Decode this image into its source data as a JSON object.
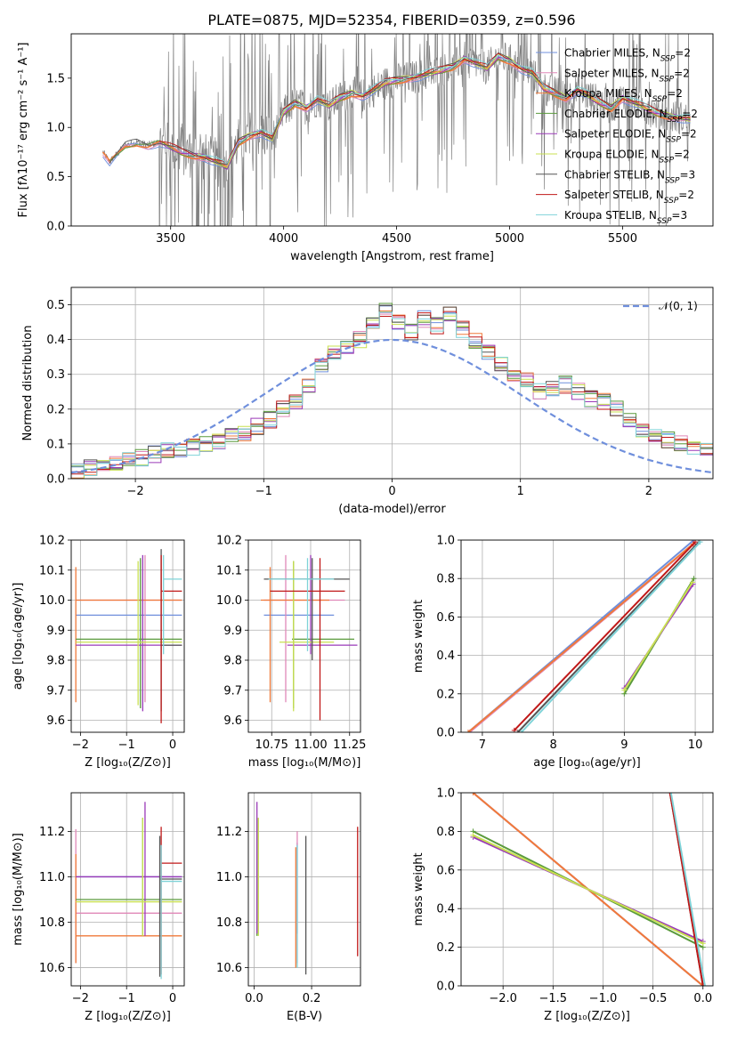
{
  "title": "PLATE=0875, MJD=52354, FIBERID=0359, z=0.596",
  "colors": [
    "#6f8fdc",
    "#e088b8",
    "#f07a3a",
    "#5a9a3c",
    "#9a3ab8",
    "#c8e050",
    "#555555",
    "#c01818",
    "#7fd3d8"
  ],
  "chart_data": [
    {
      "id": "spectrum",
      "type": "line",
      "xlabel": "wavelength [Angstrom, rest frame]",
      "ylabel": "Flux [fλ10⁻¹⁷ erg cm⁻² s⁻¹ A⁻¹]",
      "xlim": [
        3060,
        5900
      ],
      "ylim": [
        0,
        1.95
      ],
      "xticks": [
        3500,
        4000,
        4500,
        5000,
        5500
      ],
      "yticks": [
        0.0,
        0.5,
        1.0,
        1.5
      ],
      "grid": false,
      "legend_position": "top-right",
      "data_color": "#808080",
      "model_curve": {
        "x": [
          3200,
          3230,
          3300,
          3350,
          3400,
          3450,
          3500,
          3550,
          3600,
          3650,
          3700,
          3750,
          3800,
          3850,
          3900,
          3950,
          4000,
          4050,
          4100,
          4150,
          4200,
          4250,
          4300,
          4350,
          4400,
          4450,
          4500,
          4550,
          4600,
          4650,
          4700,
          4750,
          4800,
          4850,
          4900,
          4950,
          5000,
          5050,
          5100,
          5150,
          5200,
          5250,
          5300,
          5350,
          5400,
          5450,
          5500,
          5550,
          5600,
          5650,
          5700,
          5750,
          5800
        ],
        "y": [
          0.75,
          0.65,
          0.82,
          0.85,
          0.82,
          0.85,
          0.8,
          0.75,
          0.72,
          0.7,
          0.65,
          0.6,
          0.85,
          0.92,
          0.95,
          0.88,
          1.15,
          1.25,
          1.2,
          1.28,
          1.22,
          1.3,
          1.35,
          1.32,
          1.38,
          1.45,
          1.48,
          1.5,
          1.52,
          1.55,
          1.58,
          1.62,
          1.7,
          1.65,
          1.6,
          1.72,
          1.68,
          1.6,
          1.55,
          1.4,
          1.35,
          1.3,
          1.38,
          1.32,
          1.25,
          1.2,
          1.3,
          1.25,
          1.2,
          1.15,
          1.12,
          1.1,
          1.08
        ]
      },
      "series": [
        {
          "name": "Chabrier MILES, N$_{SSP}$=2",
          "display": "Chabrier MILES, N",
          "sub": "SSP",
          "suffix": "=2"
        },
        {
          "name": "Salpeter MILES, N$_{SSP}$=2",
          "display": "Salpeter MILES, N",
          "sub": "SSP",
          "suffix": "=2"
        },
        {
          "name": "Kroupa MILES, N$_{SSP}$=2",
          "display": "Kroupa MILES, N",
          "sub": "SSP",
          "suffix": "=2"
        },
        {
          "name": "Chabrier ELODIE, N$_{SSP}$=2",
          "display": "Chabrier ELODIE, N",
          "sub": "SSP",
          "suffix": "=2"
        },
        {
          "name": "Salpeter ELODIE, N$_{SSP}$=2",
          "display": "Salpeter ELODIE, N",
          "sub": "SSP",
          "suffix": "=2"
        },
        {
          "name": "Kroupa ELODIE, N$_{SSP}$=2",
          "display": "Kroupa ELODIE, N",
          "sub": "SSP",
          "suffix": "=2"
        },
        {
          "name": "Chabrier STELIB, N$_{SSP}$=3",
          "display": "Chabrier STELIB, N",
          "sub": "SSP",
          "suffix": "=3"
        },
        {
          "name": "Salpeter STELIB, N$_{SSP}$=2",
          "display": "Salpeter STELIB, N",
          "sub": "SSP",
          "suffix": "=2"
        },
        {
          "name": "Kroupa STELIB, N$_{SSP}$=3",
          "display": "Kroupa STELIB, N",
          "sub": "SSP",
          "suffix": "=3"
        }
      ]
    },
    {
      "id": "residuals",
      "type": "histogram",
      "xlabel": "(data-model)/error",
      "ylabel": "Normed distribution",
      "xlim": [
        -2.5,
        2.5
      ],
      "ylim": [
        0,
        0.55
      ],
      "xticks": [
        -2,
        -1,
        0,
        1,
        2
      ],
      "yticks": [
        0.0,
        0.1,
        0.2,
        0.3,
        0.4,
        0.5
      ],
      "grid": true,
      "bin_edges_start": -2.5,
      "bin_width": 0.1,
      "base_hist": [
        0.02,
        0.03,
        0.03,
        0.04,
        0.05,
        0.06,
        0.07,
        0.08,
        0.08,
        0.09,
        0.1,
        0.11,
        0.12,
        0.13,
        0.15,
        0.17,
        0.2,
        0.22,
        0.27,
        0.33,
        0.36,
        0.38,
        0.4,
        0.44,
        0.48,
        0.45,
        0.42,
        0.46,
        0.44,
        0.47,
        0.43,
        0.4,
        0.36,
        0.33,
        0.3,
        0.28,
        0.25,
        0.26,
        0.27,
        0.25,
        0.23,
        0.22,
        0.2,
        0.17,
        0.14,
        0.12,
        0.11,
        0.1,
        0.09,
        0.08
      ],
      "reference": {
        "label": "𝒩(0, 1)",
        "mu": 0,
        "sigma": 1,
        "color": "#6f8fdc"
      }
    },
    {
      "id": "age-vs-Z",
      "type": "errorbar",
      "xlabel": "Z [log₁₀(Z/Z⊙)]",
      "ylabel": "age  [log₁₀(age/yr)]",
      "xlim": [
        -2.2,
        0.25
      ],
      "ylim": [
        9.56,
        10.2
      ],
      "xticks": [
        -2,
        -1,
        0
      ],
      "yticks": [
        9.6,
        9.7,
        9.8,
        9.9,
        10.0,
        10.1,
        10.2
      ],
      "grid": true,
      "points": [
        {
          "x": -0.3,
          "xlo": -2.1,
          "xhi": 0.2,
          "y": 9.95,
          "ylo": 9.95,
          "yhi": 9.95,
          "c": 0
        },
        {
          "x": -0.6,
          "xlo": -2.1,
          "xhi": 0.2,
          "y": 10.0,
          "ylo": 9.66,
          "yhi": 10.15,
          "c": 1
        },
        {
          "x": -2.1,
          "xlo": -2.1,
          "xhi": 0.2,
          "y": 10.0,
          "ylo": 9.66,
          "yhi": 10.11,
          "c": 2
        },
        {
          "x": -0.7,
          "xlo": -2.1,
          "xhi": 0.2,
          "y": 9.87,
          "ylo": 9.64,
          "yhi": 10.14,
          "c": 3
        },
        {
          "x": -0.65,
          "xlo": -2.1,
          "xhi": 0.2,
          "y": 9.85,
          "ylo": 9.63,
          "yhi": 10.15,
          "c": 4
        },
        {
          "x": -0.75,
          "xlo": -2.1,
          "xhi": 0.2,
          "y": 9.86,
          "ylo": 9.65,
          "yhi": 10.13,
          "c": 5
        },
        {
          "x": -0.25,
          "xlo": -0.25,
          "xhi": 0.2,
          "y": 9.85,
          "ylo": 9.63,
          "yhi": 10.17,
          "c": 6
        },
        {
          "x": -0.25,
          "xlo": -0.25,
          "xhi": 0.2,
          "y": 10.03,
          "ylo": 9.59,
          "yhi": 10.15,
          "c": 7
        },
        {
          "x": -0.2,
          "xlo": -0.2,
          "xhi": 0.2,
          "y": 10.07,
          "ylo": 9.82,
          "yhi": 10.15,
          "c": 8
        }
      ]
    },
    {
      "id": "age-vs-mass",
      "type": "errorbar",
      "xlabel": "mass [log₁₀(M/M⊙)]",
      "ylabel": "",
      "xlim": [
        10.6,
        11.32
      ],
      "ylim": [
        9.56,
        10.2
      ],
      "xticks": [
        10.75,
        11.0,
        11.25
      ],
      "xticklabels": [
        "10.75",
        "11.00",
        "11.25"
      ],
      "yticks": [
        9.6,
        9.7,
        9.8,
        9.9,
        10.0,
        10.1,
        10.2
      ],
      "grid": true,
      "points": [
        {
          "x": 10.98,
          "xlo": 10.7,
          "xhi": 11.15,
          "y": 9.95,
          "ylo": 9.95,
          "yhi": 9.95,
          "c": 0
        },
        {
          "x": 10.84,
          "xlo": 10.7,
          "xhi": 11.22,
          "y": 10.0,
          "ylo": 9.66,
          "yhi": 10.15,
          "c": 1
        },
        {
          "x": 10.74,
          "xlo": 10.68,
          "xhi": 11.12,
          "y": 10.0,
          "ylo": 9.66,
          "yhi": 10.11,
          "c": 2
        },
        {
          "x": 10.89,
          "xlo": 10.88,
          "xhi": 11.28,
          "y": 9.87,
          "ylo": 9.64,
          "yhi": 10.13,
          "c": 3
        },
        {
          "x": 11.0,
          "xlo": 10.85,
          "xhi": 11.3,
          "y": 9.85,
          "ylo": 9.82,
          "yhi": 10.15,
          "c": 4
        },
        {
          "x": 10.89,
          "xlo": 10.8,
          "xhi": 11.15,
          "y": 9.86,
          "ylo": 9.63,
          "yhi": 10.13,
          "c": 5
        },
        {
          "x": 11.01,
          "xlo": 10.7,
          "xhi": 11.25,
          "y": 10.07,
          "ylo": 9.8,
          "yhi": 10.14,
          "c": 6
        },
        {
          "x": 11.06,
          "xlo": 10.74,
          "xhi": 11.22,
          "y": 10.03,
          "ylo": 9.6,
          "yhi": 10.14,
          "c": 7
        },
        {
          "x": 10.98,
          "xlo": 10.73,
          "xhi": 11.15,
          "y": 10.07,
          "ylo": 9.83,
          "yhi": 10.14,
          "c": 8
        }
      ]
    },
    {
      "id": "mass-weight-vs-age",
      "type": "line",
      "xlabel": "age  [log₁₀(age/yr)]",
      "ylabel": "mass weight",
      "xlim": [
        6.7,
        10.25
      ],
      "ylim": [
        0,
        1
      ],
      "xticks": [
        7,
        8,
        9,
        10
      ],
      "yticks": [
        0.0,
        0.2,
        0.4,
        0.6,
        0.8,
        1.0
      ],
      "grid": true,
      "series": [
        {
          "x": [
            6.8,
            9.98
          ],
          "y": [
            0.0,
            1.0
          ],
          "c": 0
        },
        {
          "x": [
            6.82,
            9.98
          ],
          "y": [
            0.0,
            0.98
          ],
          "c": 1
        },
        {
          "x": [
            6.8,
            9.97
          ],
          "y": [
            0.0,
            0.98
          ],
          "c": 2
        },
        {
          "x": [
            9.0,
            9.98
          ],
          "y": [
            0.2,
            0.8
          ],
          "c": 3
        },
        {
          "x": [
            9.0,
            9.97
          ],
          "y": [
            0.23,
            0.77
          ],
          "c": 4
        },
        {
          "x": [
            9.0,
            9.96
          ],
          "y": [
            0.22,
            0.78
          ],
          "c": 5
        },
        {
          "x": [
            7.5,
            10.05
          ],
          "y": [
            0.0,
            0.99
          ],
          "c": 6
        },
        {
          "x": [
            7.45,
            10.0
          ],
          "y": [
            0.01,
            0.99
          ],
          "c": 7
        },
        {
          "x": [
            7.55,
            10.07
          ],
          "y": [
            0.0,
            0.99
          ],
          "c": 8
        }
      ]
    },
    {
      "id": "mass-vs-Z",
      "type": "errorbar",
      "xlabel": "Z [log₁₀(Z/Z⊙)]",
      "ylabel": "mass [log₁₀(M/M⊙)]",
      "xlim": [
        -2.2,
        0.25
      ],
      "ylim": [
        10.52,
        11.37
      ],
      "xticks": [
        -2,
        -1,
        0
      ],
      "yticks": [
        10.6,
        10.8,
        11.0,
        11.2
      ],
      "grid": true,
      "points": [
        {
          "x": -0.3,
          "xlo": -2.1,
          "xhi": 0.2,
          "y": 11.0,
          "ylo": 11.0,
          "yhi": 11.0,
          "c": 0
        },
        {
          "x": -2.1,
          "xlo": -2.1,
          "xhi": 0.2,
          "y": 10.84,
          "ylo": 10.62,
          "yhi": 11.21,
          "c": 1
        },
        {
          "x": -2.1,
          "xlo": -2.1,
          "xhi": 0.2,
          "y": 10.74,
          "ylo": 10.62,
          "yhi": 11.1,
          "c": 2
        },
        {
          "x": -0.65,
          "xlo": -2.1,
          "xhi": 0.2,
          "y": 10.9,
          "ylo": 10.74,
          "yhi": 11.26,
          "c": 3
        },
        {
          "x": -0.6,
          "xlo": -2.1,
          "xhi": 0.2,
          "y": 11.0,
          "ylo": 10.74,
          "yhi": 11.33,
          "c": 4
        },
        {
          "x": -0.65,
          "xlo": -2.1,
          "xhi": 0.2,
          "y": 10.89,
          "ylo": 10.74,
          "yhi": 11.26,
          "c": 5
        },
        {
          "x": -0.28,
          "xlo": -0.28,
          "xhi": 0.2,
          "y": 10.99,
          "ylo": 10.56,
          "yhi": 11.18,
          "c": 6
        },
        {
          "x": -0.25,
          "xlo": -0.25,
          "xhi": 0.2,
          "y": 11.06,
          "ylo": 10.57,
          "yhi": 11.22,
          "c": 7
        },
        {
          "x": -0.25,
          "xlo": -0.25,
          "xhi": 0.2,
          "y": 10.98,
          "ylo": 10.55,
          "yhi": 11.14,
          "c": 8
        }
      ]
    },
    {
      "id": "mass-vs-EBV",
      "type": "errorbar",
      "xlabel": "E(B-V)",
      "ylabel": "",
      "xlim": [
        -0.02,
        0.37
      ],
      "ylim": [
        10.52,
        11.37
      ],
      "xticks": [
        0.0,
        0.2
      ],
      "xticklabels": [
        "0.0",
        "0.2"
      ],
      "yticks": [
        10.6,
        10.8,
        11.0,
        11.2
      ],
      "grid": true,
      "points": [
        {
          "x": 0.15,
          "y": 10.98,
          "ylo": 10.75,
          "yhi": 11.15,
          "c": 0
        },
        {
          "x": 0.15,
          "y": 10.84,
          "ylo": 10.62,
          "yhi": 11.2,
          "c": 1
        },
        {
          "x": 0.145,
          "y": 10.74,
          "ylo": 10.6,
          "yhi": 11.13,
          "c": 2
        },
        {
          "x": 0.01,
          "y": 10.9,
          "ylo": 10.74,
          "yhi": 11.26,
          "c": 3
        },
        {
          "x": 0.01,
          "y": 11.0,
          "ylo": 10.75,
          "yhi": 11.33,
          "c": 4
        },
        {
          "x": 0.015,
          "y": 10.89,
          "ylo": 10.74,
          "yhi": 11.26,
          "c": 5
        },
        {
          "x": 0.18,
          "y": 10.99,
          "ylo": 10.57,
          "yhi": 11.18,
          "c": 6
        },
        {
          "x": 0.36,
          "y": 11.06,
          "ylo": 10.65,
          "yhi": 11.22,
          "c": 7
        },
        {
          "x": 0.15,
          "y": 10.98,
          "ylo": 10.6,
          "yhi": 11.14,
          "c": 8
        }
      ]
    },
    {
      "id": "mass-weight-vs-Z",
      "type": "line",
      "xlabel": "Z [log₁₀(Z/Z⊙)]",
      "ylabel": "mass weight",
      "xlim": [
        -2.42,
        0.1
      ],
      "ylim": [
        0,
        1
      ],
      "xticks": [
        -2.0,
        -1.5,
        -1.0,
        -0.5,
        0.0
      ],
      "xticklabels": [
        "−2.0",
        "−1.5",
        "−1.0",
        "−0.5",
        "0.0"
      ],
      "yticks": [
        0.0,
        0.2,
        0.4,
        0.6,
        0.8,
        1.0
      ],
      "grid": true,
      "series": [
        {
          "x": [
            -2.3,
            0.0
          ],
          "y": [
            1.0,
            0.0
          ],
          "c": 0
        },
        {
          "x": [
            -2.3,
            0.0
          ],
          "y": [
            1.0,
            0.0
          ],
          "c": 1
        },
        {
          "x": [
            -2.3,
            0.0
          ],
          "y": [
            1.0,
            0.0
          ],
          "c": 2
        },
        {
          "x": [
            -2.3,
            0.0
          ],
          "y": [
            0.8,
            0.2
          ],
          "c": 3
        },
        {
          "x": [
            -2.3,
            0.0
          ],
          "y": [
            0.77,
            0.23
          ],
          "c": 4
        },
        {
          "x": [
            -2.3,
            0.0
          ],
          "y": [
            0.78,
            0.22
          ],
          "c": 5
        },
        {
          "x": [
            -0.33,
            0.0
          ],
          "y": [
            1.0,
            0.0
          ],
          "c": 6
        },
        {
          "x": [
            -0.33,
            0.0
          ],
          "y": [
            1.0,
            0.0
          ],
          "c": 7
        },
        {
          "x": [
            -0.32,
            0.02
          ],
          "y": [
            1.0,
            0.0
          ],
          "c": 8
        }
      ]
    }
  ]
}
